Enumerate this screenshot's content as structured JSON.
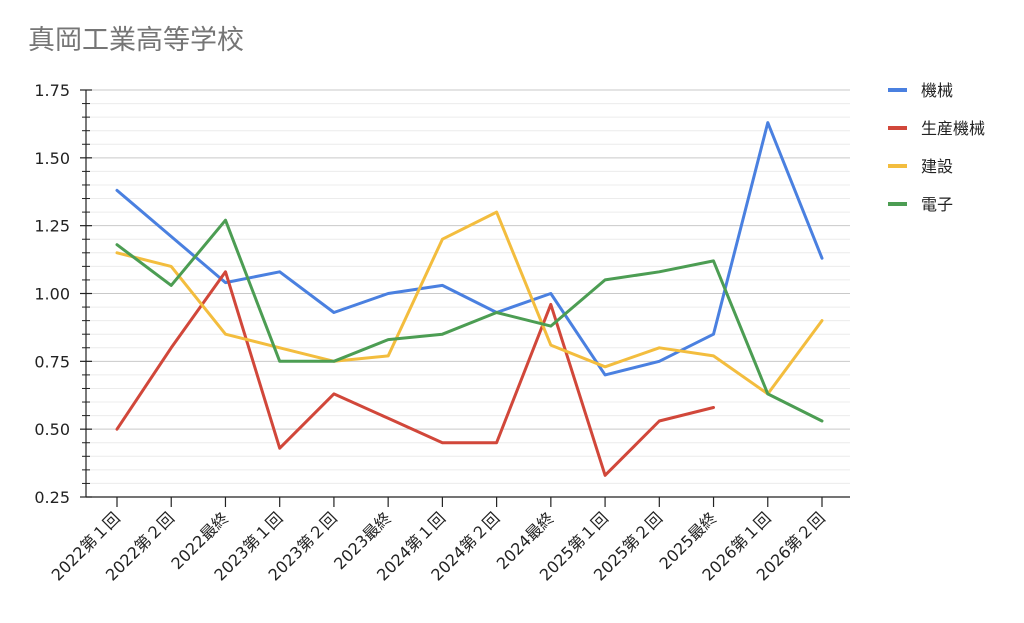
{
  "chart_data": {
    "type": "line",
    "title": "真岡工業高等学校",
    "xlabel": "",
    "ylabel": "",
    "ylim": [
      0.25,
      1.75
    ],
    "y_ticks": [
      "0.25",
      "0.50",
      "0.75",
      "1.00",
      "1.25",
      "1.50",
      "1.75"
    ],
    "y_tick_values": [
      0.25,
      0.5,
      0.75,
      1.0,
      1.25,
      1.5,
      1.75
    ],
    "grid": true,
    "legend_position": "right",
    "categories": [
      "2022第１回",
      "2022第２回",
      "2022最終",
      "2023第１回",
      "2023第２回",
      "2023最終",
      "2024第１回",
      "2024第２回",
      "2024最終",
      "2025第１回",
      "2025第２回",
      "2025最終",
      "2026第１回",
      "2026第２回"
    ],
    "series": [
      {
        "name": "機械",
        "color": "#4a80e0",
        "values": [
          1.38,
          1.21,
          1.04,
          1.08,
          0.93,
          1.0,
          1.03,
          0.93,
          1.0,
          0.7,
          0.75,
          0.85,
          1.63,
          1.13
        ]
      },
      {
        "name": "生産機械",
        "color": "#d1473a",
        "values": [
          0.5,
          0.8,
          1.08,
          0.43,
          0.63,
          0.54,
          0.45,
          0.45,
          0.96,
          0.33,
          0.53,
          0.58,
          null,
          null
        ]
      },
      {
        "name": "建設",
        "color": "#f3bd3e",
        "values": [
          1.15,
          1.1,
          0.85,
          0.8,
          0.75,
          0.77,
          1.2,
          1.3,
          0.81,
          0.73,
          0.8,
          0.77,
          0.63,
          0.9
        ]
      },
      {
        "name": "電子",
        "color": "#4c9d53",
        "values": [
          1.18,
          1.03,
          1.27,
          0.75,
          0.75,
          0.83,
          0.85,
          0.93,
          0.88,
          1.05,
          1.08,
          1.12,
          0.63,
          0.53
        ]
      }
    ]
  }
}
